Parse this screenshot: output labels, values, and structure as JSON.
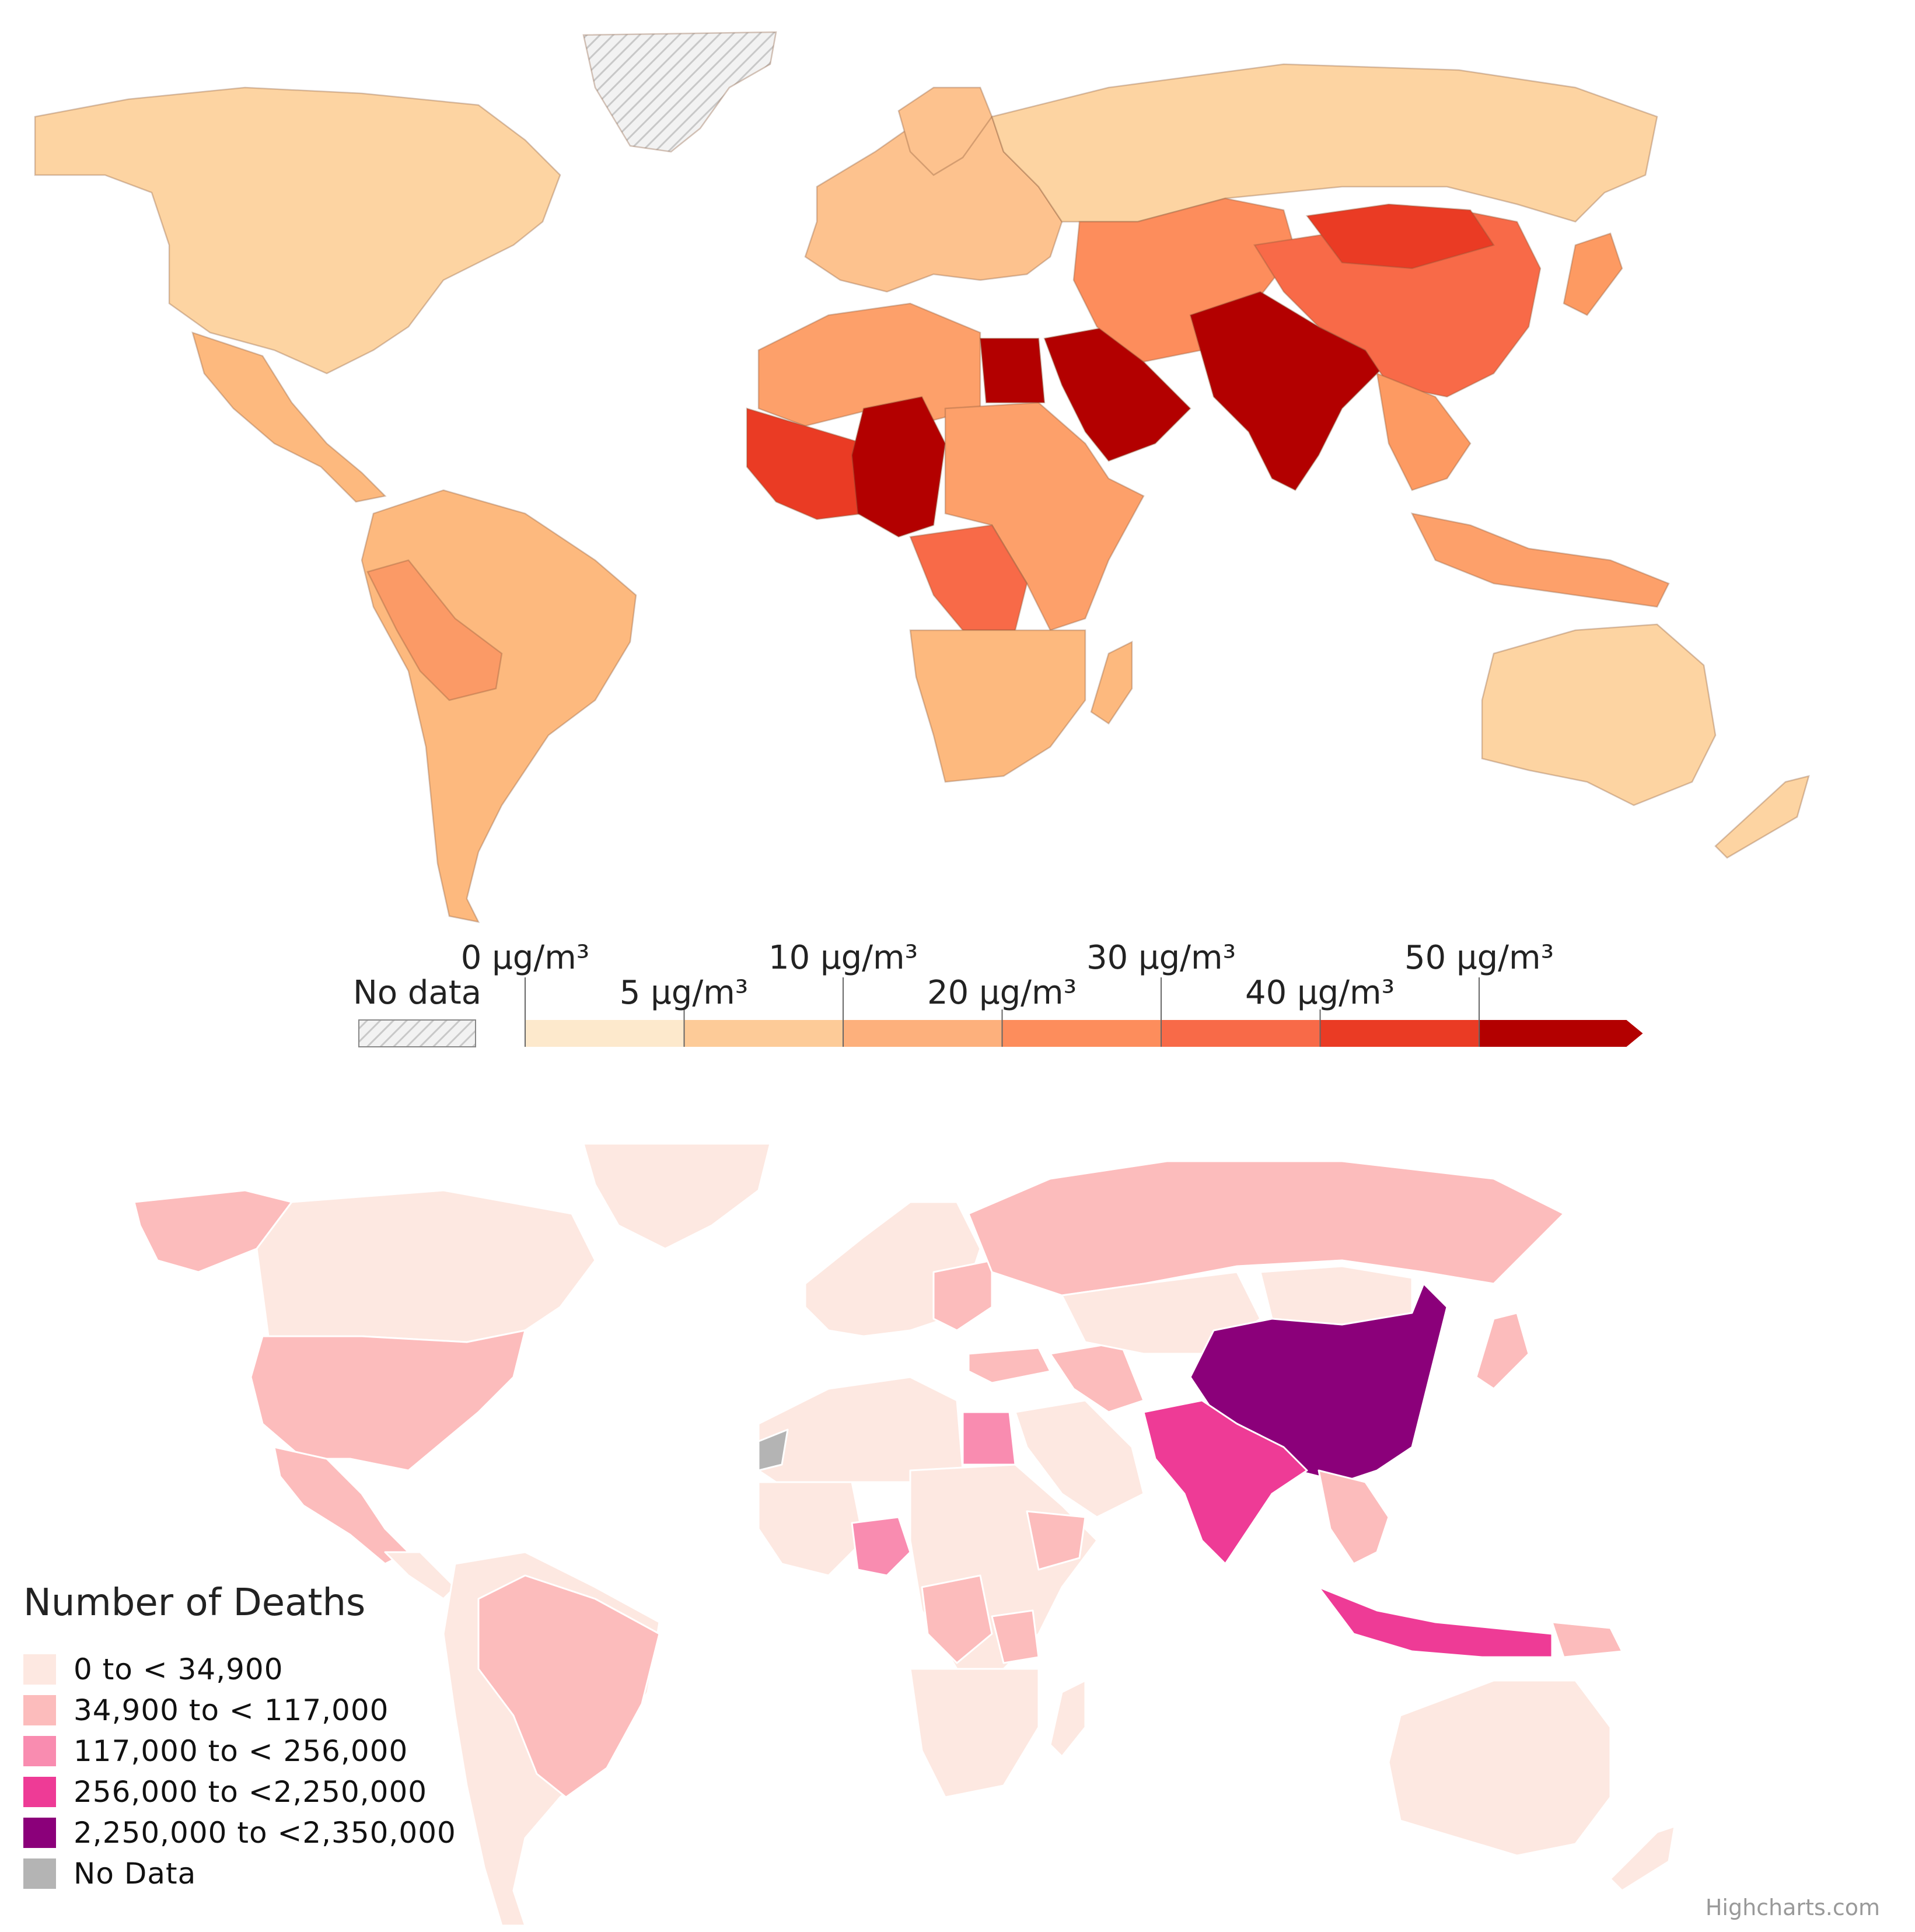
{
  "pm_map": {
    "no_data_label": "No data",
    "scale_labels_top": [
      "0 μg/m³",
      "10 μg/m³",
      "30 μg/m³",
      "50 μg/m³"
    ],
    "scale_labels_bottom": [
      "5 μg/m³",
      "20 μg/m³",
      "40 μg/m³"
    ],
    "scale_colors": [
      "#fde9cc",
      "#fdcb98",
      "#fdb07c",
      "#fd8d5c",
      "#f86a48",
      "#ea3b24",
      "#b30000"
    ],
    "no_data_color": "#e8e8e8",
    "region_colors": {
      "north_america": "#fdd4a2",
      "latin_america": "#fdb97e",
      "south_america_west": "#fb9a66",
      "europe": "#fdc28e",
      "russia": "#fdd4a2",
      "north_africa": "#fda06a",
      "west_africa": "#ea3b24",
      "sahel": "#b30000",
      "central_africa": "#f86a48",
      "southern_africa": "#fdb97e",
      "arabia": "#b30000",
      "egypt": "#b30000",
      "central_asia": "#fd8d5c",
      "south_asia": "#b30000",
      "china": "#f86a48",
      "mongolia": "#ea3b24",
      "southeast_asia": "#fd9a62",
      "indonesia": "#fda06a",
      "australia": "#fdd4a2",
      "japan": "#fd9a62"
    }
  },
  "deaths_map": {
    "legend_title": "Number of Deaths",
    "legend_items": [
      {
        "label": "0 to < 34,900",
        "color": "#fde8e1"
      },
      {
        "label": "34,900 to < 117,000",
        "color": "#fcbcbc"
      },
      {
        "label": "117,000 to < 256,000",
        "color": "#f98cb0"
      },
      {
        "label": "256,000 to <2,250,000",
        "color": "#ee3b96"
      },
      {
        "label": "2,250,000 to <2,350,000",
        "color": "#8b007a"
      },
      {
        "label": "No Data",
        "color": "#b4b4b4"
      }
    ],
    "credits": "Highcharts.com"
  }
}
